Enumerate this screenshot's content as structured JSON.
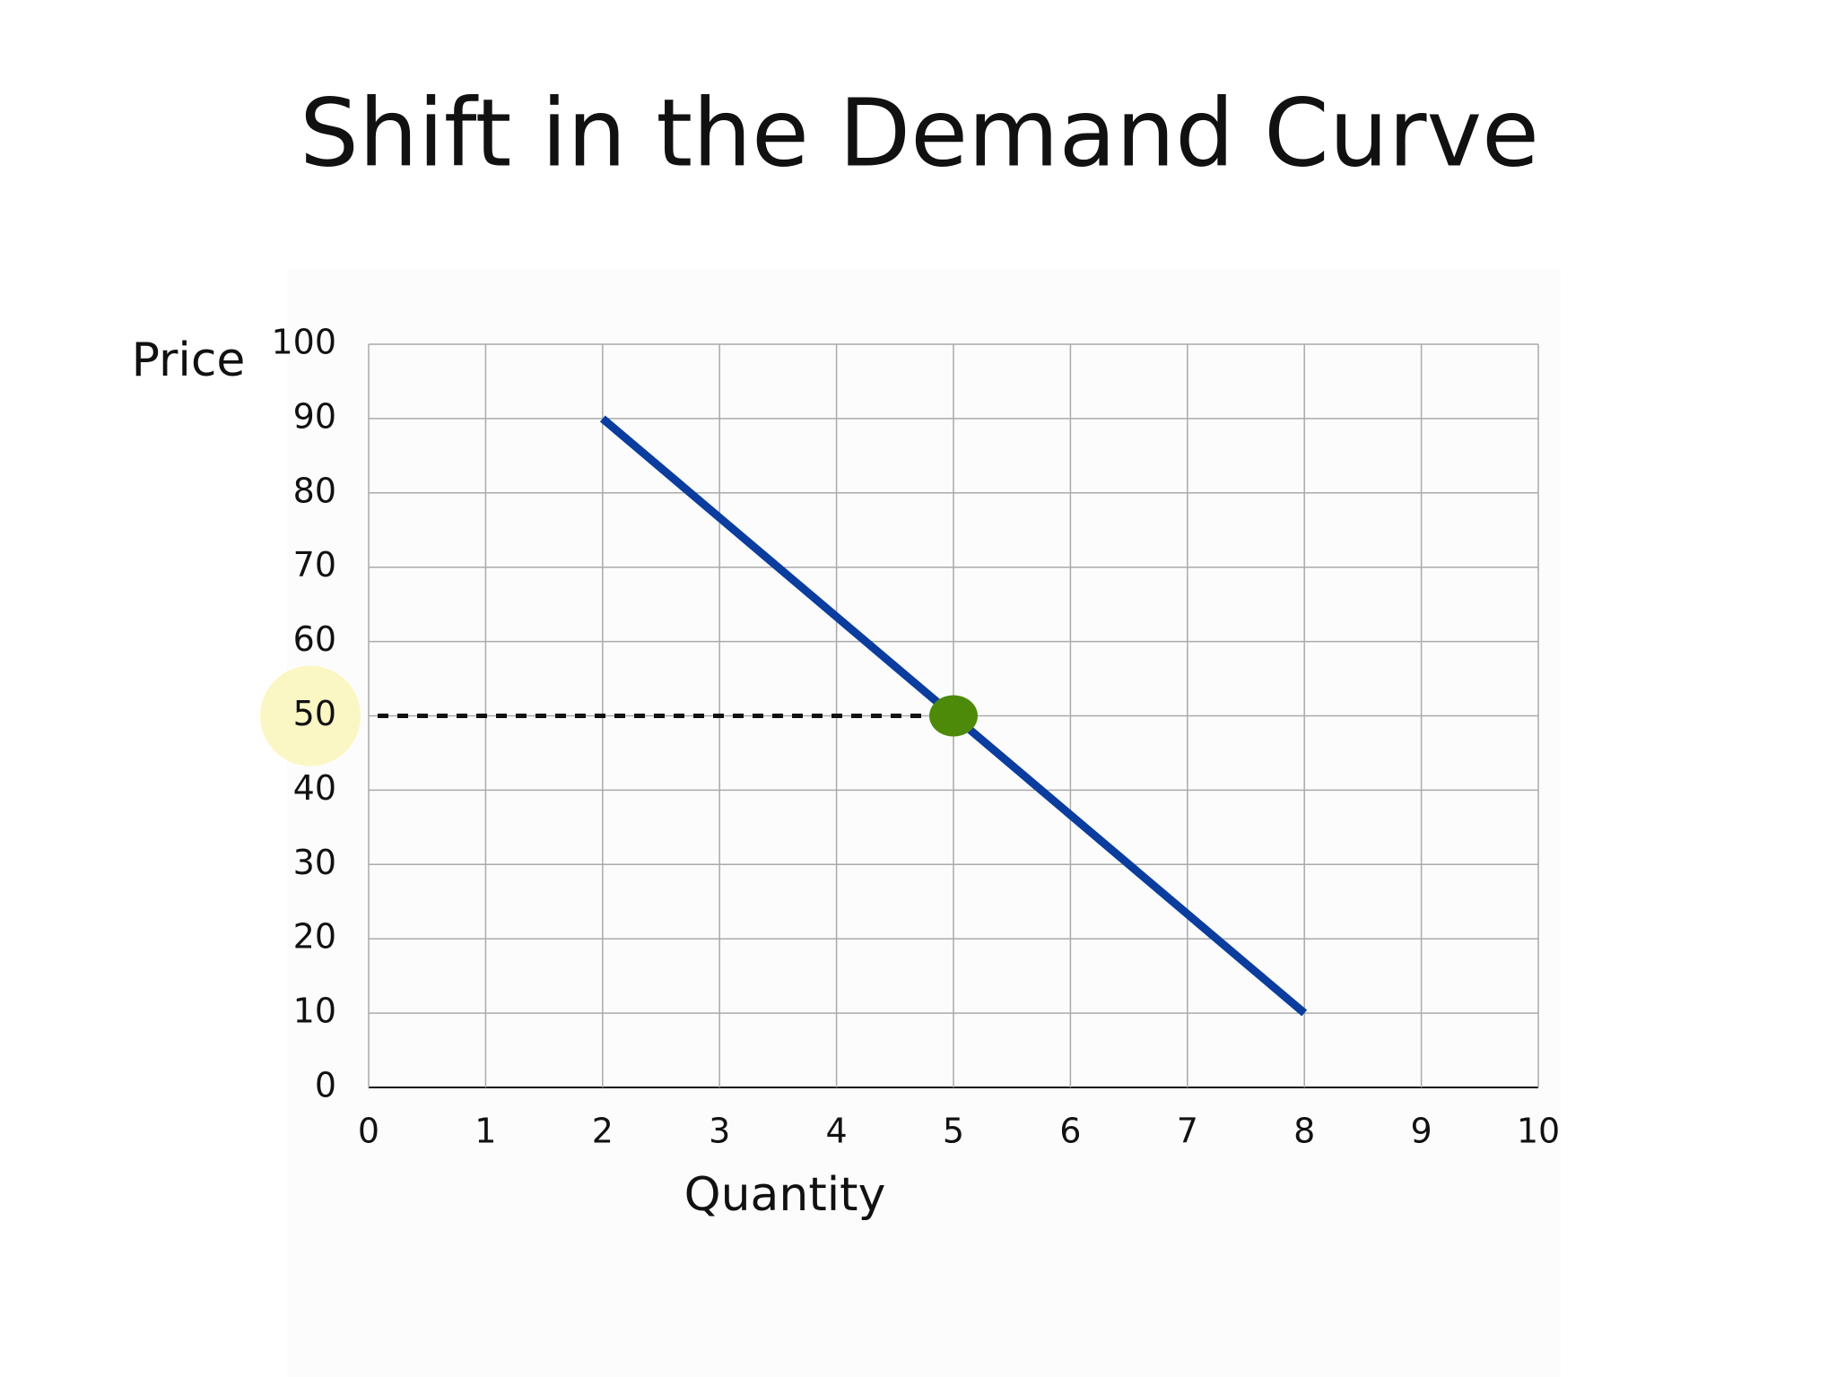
{
  "chart_data": {
    "type": "line",
    "title": "Shift in the Demand Curve",
    "x_label": "Quantity",
    "y_label": "Price",
    "xlim": [
      0,
      10
    ],
    "xticks": [
      0,
      1,
      2,
      3,
      4,
      5,
      6,
      7,
      8,
      9,
      10
    ],
    "ylim": [
      0,
      100
    ],
    "yticks": [
      0,
      10,
      20,
      30,
      40,
      50,
      60,
      70,
      80,
      90,
      100
    ],
    "grid": true,
    "series": [
      {
        "color": "#0a3d9e",
        "x": [
          2,
          8
        ],
        "values": [
          90,
          10
        ]
      }
    ],
    "points": [
      {
        "x": 5,
        "y": 50,
        "color": "#4e8a0a",
        "dashed_guide": true
      }
    ],
    "highlight": {
      "ytick": 50,
      "color": "#fbf7c4"
    }
  }
}
